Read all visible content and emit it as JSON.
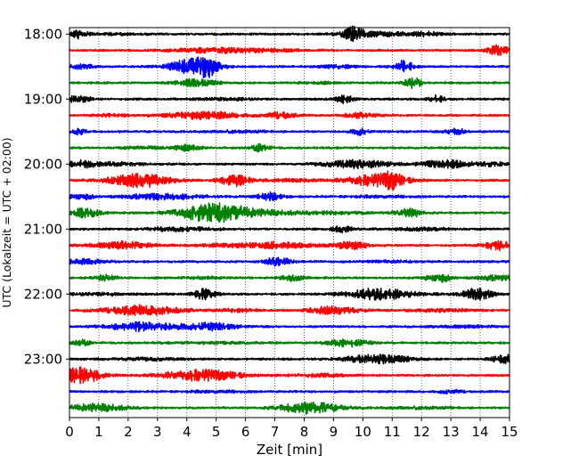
{
  "chart_data": {
    "type": "line",
    "title": "",
    "xlabel": "Zeit  [min]",
    "ylabel": "UTC (Lokalzeit = UTC + 02:00)",
    "xlim": [
      0,
      15
    ],
    "x_ticks": [
      0,
      1,
      2,
      3,
      4,
      5,
      6,
      7,
      8,
      9,
      10,
      11,
      12,
      13,
      14,
      15
    ],
    "x_tick_labels": [
      "0",
      "1",
      "2",
      "3",
      "4",
      "5",
      "6",
      "7",
      "8",
      "9",
      "10",
      "11",
      "12",
      "13",
      "14",
      "15"
    ],
    "y_tick_labels": [
      {
        "label": "18:00",
        "minutes_after_first": 0
      },
      {
        "label": "19:00",
        "minutes_after_first": 60
      },
      {
        "label": "20:00",
        "minutes_after_first": 120
      },
      {
        "label": "21:00",
        "minutes_after_first": 180
      },
      {
        "label": "22:00",
        "minutes_after_first": 240
      },
      {
        "label": "23:00",
        "minutes_after_first": 300
      }
    ],
    "grid": {
      "vertical": true,
      "horizontal": false,
      "style": "dotted"
    },
    "row_minutes": 15,
    "row_colors": [
      "#000000",
      "#ff0000",
      "#0000ff",
      "#008000"
    ],
    "rows": [
      {
        "start": "18:00",
        "bursts": [
          [
            0.3,
            0.22,
            0.22
          ],
          [
            9.7,
            0.25,
            0.35
          ],
          [
            10.5,
            0.9,
            0.1
          ],
          [
            12.2,
            0.4,
            0.08
          ],
          [
            1.5,
            0.6,
            0.05
          ]
        ]
      },
      {
        "start": "18:15",
        "bursts": [
          [
            5.0,
            1.0,
            0.12
          ],
          [
            14.6,
            0.25,
            0.28
          ],
          [
            7.0,
            0.8,
            0.05
          ]
        ]
      },
      {
        "start": "18:30",
        "bursts": [
          [
            4.2,
            0.55,
            0.4
          ],
          [
            4.7,
            0.25,
            0.3
          ],
          [
            11.4,
            0.22,
            0.3
          ],
          [
            0.4,
            0.3,
            0.12
          ],
          [
            9.2,
            0.5,
            0.07
          ]
        ]
      },
      {
        "start": "18:45",
        "bursts": [
          [
            4.3,
            0.5,
            0.18
          ],
          [
            11.7,
            0.2,
            0.28
          ],
          [
            8.5,
            0.6,
            0.04
          ]
        ]
      },
      {
        "start": "19:00",
        "bursts": [
          [
            0.3,
            0.3,
            0.18
          ],
          [
            9.4,
            0.2,
            0.22
          ],
          [
            12.5,
            0.2,
            0.18
          ],
          [
            5.2,
            0.8,
            0.05
          ]
        ]
      },
      {
        "start": "19:15",
        "bursts": [
          [
            4.6,
            0.9,
            0.18
          ],
          [
            7.2,
            0.35,
            0.16
          ],
          [
            9.9,
            0.4,
            0.12
          ],
          [
            1.5,
            0.5,
            0.05
          ]
        ]
      },
      {
        "start": "19:30",
        "bursts": [
          [
            0.3,
            0.2,
            0.14
          ],
          [
            9.9,
            0.18,
            0.18
          ],
          [
            13.2,
            0.25,
            0.15
          ],
          [
            5.8,
            0.7,
            0.05
          ]
        ]
      },
      {
        "start": "19:45",
        "bursts": [
          [
            4.0,
            0.3,
            0.16
          ],
          [
            6.5,
            0.22,
            0.18
          ],
          [
            2.5,
            0.6,
            0.05
          ]
        ]
      },
      {
        "start": "20:00",
        "bursts": [
          [
            0.4,
            0.3,
            0.2
          ],
          [
            1.6,
            0.6,
            0.1
          ],
          [
            9.8,
            0.8,
            0.2
          ],
          [
            12.8,
            0.6,
            0.2
          ],
          [
            14.5,
            0.4,
            0.1
          ]
        ]
      },
      {
        "start": "20:15",
        "bursts": [
          [
            2.4,
            0.75,
            0.34
          ],
          [
            5.6,
            0.35,
            0.3
          ],
          [
            10.5,
            0.75,
            0.32
          ],
          [
            11.0,
            0.2,
            0.25
          ],
          [
            7.5,
            0.8,
            0.06
          ]
        ]
      },
      {
        "start": "20:30",
        "bursts": [
          [
            0.4,
            0.3,
            0.15
          ],
          [
            3.2,
            0.9,
            0.14
          ],
          [
            6.8,
            0.3,
            0.2
          ],
          [
            10.5,
            0.8,
            0.04
          ]
        ]
      },
      {
        "start": "20:45",
        "bursts": [
          [
            0.5,
            0.4,
            0.22
          ],
          [
            4.9,
            0.8,
            0.5
          ],
          [
            6.5,
            0.8,
            0.12
          ],
          [
            11.6,
            0.3,
            0.2
          ],
          [
            9.0,
            1.0,
            0.06
          ]
        ]
      },
      {
        "start": "21:00",
        "bursts": [
          [
            3.8,
            0.8,
            0.1
          ],
          [
            9.3,
            0.25,
            0.14
          ],
          [
            12.0,
            0.8,
            0.06
          ]
        ]
      },
      {
        "start": "21:15",
        "bursts": [
          [
            1.8,
            0.7,
            0.18
          ],
          [
            7.1,
            0.8,
            0.16
          ],
          [
            9.6,
            0.4,
            0.2
          ],
          [
            14.6,
            0.4,
            0.22
          ],
          [
            5.2,
            0.6,
            0.07
          ]
        ]
      },
      {
        "start": "21:30",
        "bursts": [
          [
            0.5,
            0.5,
            0.12
          ],
          [
            7.1,
            0.3,
            0.22
          ],
          [
            11.0,
            0.6,
            0.04
          ]
        ]
      },
      {
        "start": "21:45",
        "bursts": [
          [
            1.2,
            0.3,
            0.14
          ],
          [
            7.6,
            0.3,
            0.14
          ],
          [
            12.6,
            0.3,
            0.22
          ],
          [
            14.6,
            0.5,
            0.12
          ],
          [
            4.5,
            0.6,
            0.04
          ]
        ]
      },
      {
        "start": "22:00",
        "bursts": [
          [
            4.6,
            0.25,
            0.28
          ],
          [
            10.6,
            0.8,
            0.28
          ],
          [
            13.9,
            0.35,
            0.3
          ],
          [
            1.0,
            0.7,
            0.06
          ]
        ]
      },
      {
        "start": "22:15",
        "bursts": [
          [
            2.5,
            0.9,
            0.26
          ],
          [
            9.0,
            0.6,
            0.2
          ],
          [
            5.8,
            0.5,
            0.07
          ],
          [
            12.7,
            0.9,
            0.06
          ]
        ]
      },
      {
        "start": "22:30",
        "bursts": [
          [
            2.5,
            0.8,
            0.24
          ],
          [
            4.8,
            0.6,
            0.18
          ],
          [
            13.5,
            0.7,
            0.05
          ]
        ]
      },
      {
        "start": "22:45",
        "bursts": [
          [
            0.4,
            0.2,
            0.16
          ],
          [
            9.5,
            0.5,
            0.2
          ],
          [
            5.0,
            0.9,
            0.04
          ]
        ]
      },
      {
        "start": "23:00",
        "bursts": [
          [
            10.5,
            0.8,
            0.22
          ],
          [
            14.8,
            0.3,
            0.24
          ],
          [
            2.5,
            0.9,
            0.06
          ]
        ]
      },
      {
        "start": "23:15",
        "bursts": [
          [
            0.4,
            0.5,
            0.42
          ],
          [
            4.5,
            0.9,
            0.3
          ],
          [
            8.5,
            0.8,
            0.06
          ]
        ]
      },
      {
        "start": "23:30",
        "bursts": [
          [
            13.0,
            0.3,
            0.08
          ],
          [
            5.0,
            0.8,
            0.04
          ]
        ]
      },
      {
        "start": "23:45",
        "bursts": [
          [
            0.9,
            0.7,
            0.2
          ],
          [
            8.2,
            0.7,
            0.3
          ],
          [
            12.0,
            0.8,
            0.05
          ]
        ]
      }
    ]
  }
}
